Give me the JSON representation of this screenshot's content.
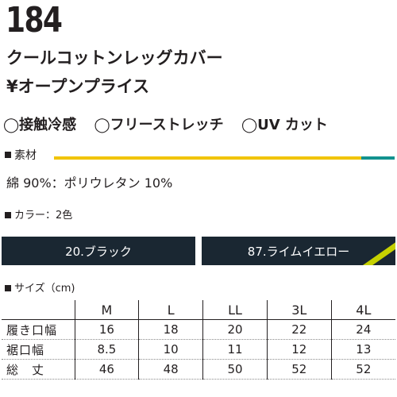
{
  "product": {
    "number": "184",
    "name": "クールコットンレッグカバー",
    "price": "¥オープンプライス"
  },
  "features": [
    "◯接触冷感",
    "◯フリーストレッチ",
    "◯UV カット"
  ],
  "material": {
    "heading": "素材",
    "text": "綿 90%：ポリウレタン 10%"
  },
  "colors": {
    "heading": "カラー：2色",
    "options": [
      "20.ブラック",
      "87.ライムイエロー"
    ]
  },
  "sizes": {
    "heading": "サイズ（cm)",
    "columns": [
      "M",
      "L",
      "LL",
      "3L",
      "4L"
    ],
    "rows": [
      {
        "label": "履き口幅",
        "values": [
          "16",
          "18",
          "20",
          "22",
          "24"
        ]
      },
      {
        "label": "裾口幅",
        "values": [
          "8.5",
          "10",
          "11",
          "12",
          "13"
        ]
      },
      {
        "label": "総　丈",
        "values": [
          "46",
          "48",
          "50",
          "52",
          "52"
        ]
      }
    ]
  },
  "style_colors": {
    "text": "#231f20",
    "swatch_navy": "#1a2732",
    "lime": "#c6d100",
    "bar_yellow": "#f1c400",
    "bar_teal": "#12928f"
  }
}
